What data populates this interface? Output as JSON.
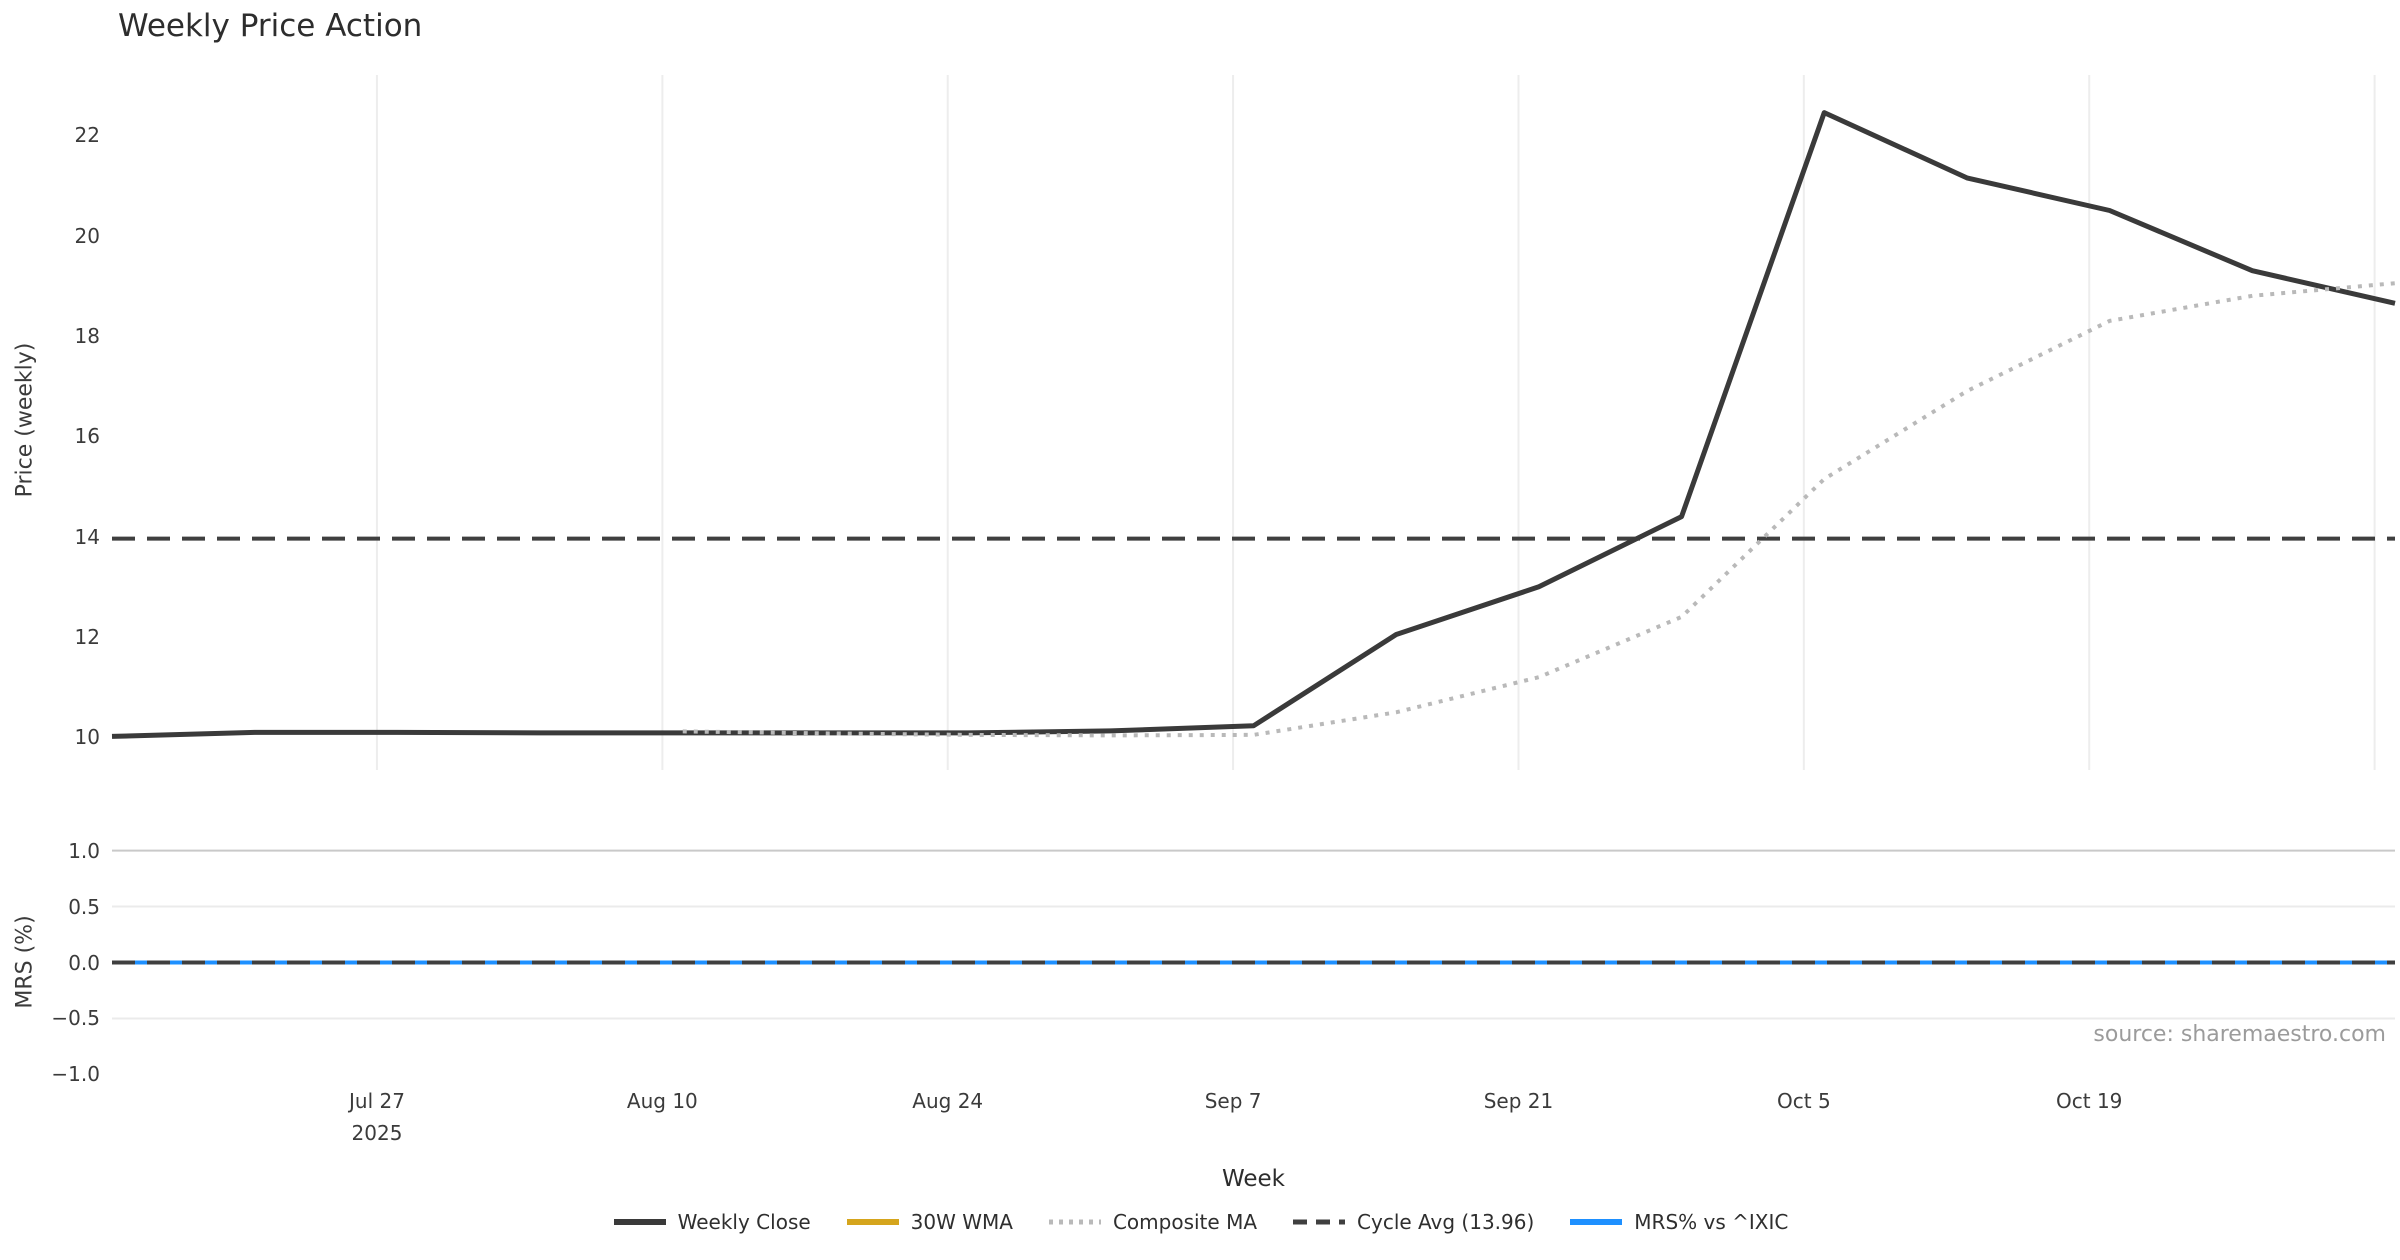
{
  "title": "Weekly Price Action",
  "source_note": "source: sharemaestro.com",
  "colors": {
    "weekly_close": "#3a3a3a",
    "wma_30w": "#d5a51d",
    "composite_ma": "#b9b9b9",
    "cycle_avg": "#3f3f3f",
    "mrs_blue": "#1e90ff",
    "grid_vertical": "#ededed",
    "grid_horizontal_light": "#ebebeb",
    "grid_horizontal_dark": "#c9c9c9",
    "text": "#3b3b3b",
    "source_text": "#9b9b9b"
  },
  "chart_data": {
    "type": "line",
    "title": "Weekly Price Action",
    "xlabel": "Week",
    "grid": "vertical-on-price-panel, horizontal-on-mrs-panel",
    "legend_position": "bottom-center",
    "x_weekly_dates": [
      "2025-07-14",
      "2025-07-21",
      "2025-07-28",
      "2025-08-04",
      "2025-08-11",
      "2025-08-18",
      "2025-08-25",
      "2025-09-01",
      "2025-09-08",
      "2025-09-15",
      "2025-09-22",
      "2025-09-29",
      "2025-10-06",
      "2025-10-13",
      "2025-10-20",
      "2025-10-27",
      "2025-11-03"
    ],
    "xticks": [
      {
        "label": "Jul 27",
        "sub": "2025",
        "week": 1.857
      },
      {
        "label": "Aug 10",
        "sub": "",
        "week": 3.857
      },
      {
        "label": "Aug 24",
        "sub": "",
        "week": 5.857
      },
      {
        "label": "Sep 7",
        "sub": "",
        "week": 7.857
      },
      {
        "label": "Sep 21",
        "sub": "",
        "week": 9.857
      },
      {
        "label": "Oct 5",
        "sub": "",
        "week": 11.857
      },
      {
        "label": "Oct 19",
        "sub": "",
        "week": 13.857
      },
      {
        "label": "",
        "sub": "",
        "week": 15.857
      }
    ],
    "panels": [
      {
        "name": "price",
        "ylabel": "Price (weekly)",
        "ylim": [
          9.35,
          23.2
        ],
        "yticks": [
          {
            "v": 10,
            "label": "10"
          },
          {
            "v": 12,
            "label": "12"
          },
          {
            "v": 14,
            "label": "14"
          },
          {
            "v": 16,
            "label": "16"
          },
          {
            "v": 18,
            "label": "18"
          },
          {
            "v": 20,
            "label": "20"
          },
          {
            "v": 22,
            "label": "22"
          }
        ],
        "series": [
          {
            "name": "Weekly Close",
            "style": "solid",
            "color": "#3a3a3a",
            "width": 5,
            "values": [
              10.02,
              10.1,
              10.1,
              10.09,
              10.09,
              10.09,
              10.09,
              10.13,
              10.23,
              12.05,
              13.0,
              14.4,
              22.45,
              21.15,
              20.5,
              19.3,
              18.65
            ]
          },
          {
            "name": "30W WMA",
            "style": "solid",
            "color": "#d5a51d",
            "width": 5,
            "values": null
          },
          {
            "name": "Composite MA",
            "style": "dotted",
            "color": "#b9b9b9",
            "width": 4,
            "values": [
              null,
              null,
              null,
              null,
              10.12,
              10.08,
              10.05,
              10.04,
              10.05,
              10.5,
              11.2,
              12.4,
              15.15,
              16.9,
              18.3,
              18.8,
              19.05
            ]
          },
          {
            "name": "Cycle Avg (13.96)",
            "style": "dashed",
            "color": "#3f3f3f",
            "width": 4,
            "const": 13.96
          }
        ]
      },
      {
        "name": "mrs",
        "ylabel": "MRS (%)",
        "ylim": [
          -1.05,
          1.05
        ],
        "yticks": [
          {
            "v": 1.0,
            "label": "1.0"
          },
          {
            "v": 0.5,
            "label": "0.5"
          },
          {
            "v": 0.0,
            "label": "0.0"
          },
          {
            "v": -0.5,
            "label": "−0.5"
          },
          {
            "v": -1.0,
            "label": "−1.0"
          }
        ],
        "hgrid": [
          {
            "v": 1.0,
            "dark": true
          },
          {
            "v": 0.5,
            "dark": false
          },
          {
            "v": -0.5,
            "dark": false
          }
        ],
        "series": [
          {
            "name": "MRS% vs ^IXIC",
            "style": "solid",
            "color": "#1e90ff",
            "width": 4,
            "const": 0.0
          },
          {
            "name": "Zero line",
            "style": "dashed",
            "color": "#3f3f3f",
            "width": 4,
            "const": 0.0
          }
        ]
      }
    ],
    "legend": [
      {
        "label": "Weekly Close",
        "style": "solid",
        "color": "#3a3a3a"
      },
      {
        "label": "30W WMA",
        "style": "solid",
        "color": "#d5a51d"
      },
      {
        "label": "Composite MA",
        "style": "dotted",
        "color": "#b9b9b9"
      },
      {
        "label": "Cycle Avg (13.96)",
        "style": "dashed",
        "color": "#3f3f3f"
      },
      {
        "label": "MRS% vs ^IXIC",
        "style": "solid",
        "color": "#1e90ff"
      }
    ]
  }
}
